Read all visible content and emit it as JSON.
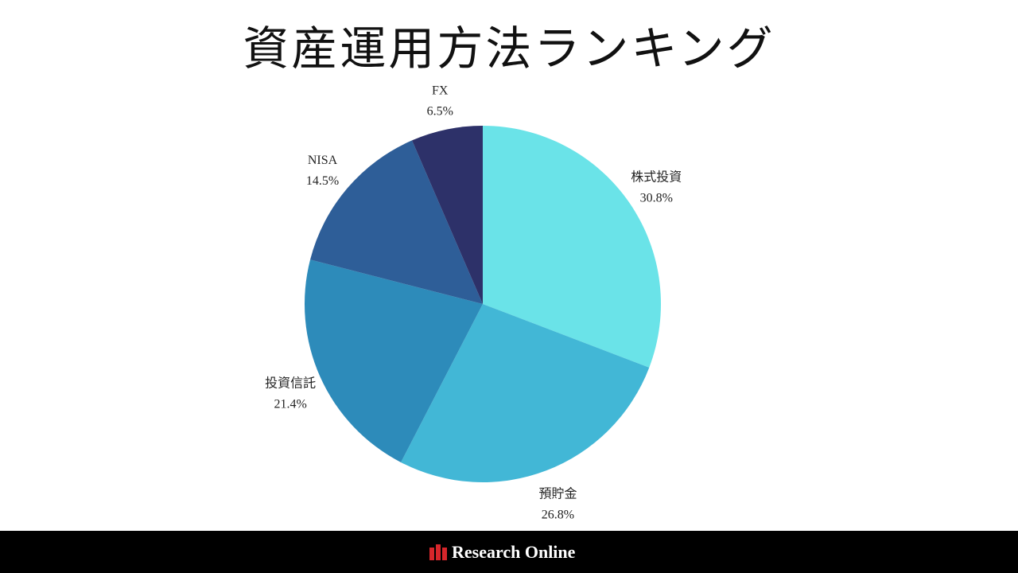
{
  "title": "資産運用方法ランキング",
  "chart_data": {
    "type": "pie",
    "start_angle_deg": 0,
    "direction": "clockwise",
    "slices": [
      {
        "label": "株式投資",
        "value": 30.8,
        "value_label": "30.8%",
        "color": "#6ae3e8"
      },
      {
        "label": "預貯金",
        "value": 26.8,
        "value_label": "26.8%",
        "color": "#42b7d6"
      },
      {
        "label": "投資信託",
        "value": 21.4,
        "value_label": "21.4%",
        "color": "#2d8bba"
      },
      {
        "label": "NISA",
        "value": 14.5,
        "value_label": "14.5%",
        "color": "#2e5e98"
      },
      {
        "label": "FX",
        "value": 6.5,
        "value_label": "6.5%",
        "color": "#2d3169"
      }
    ]
  },
  "footer": {
    "brand": "Research Online",
    "logo_color": "#d7262b"
  }
}
